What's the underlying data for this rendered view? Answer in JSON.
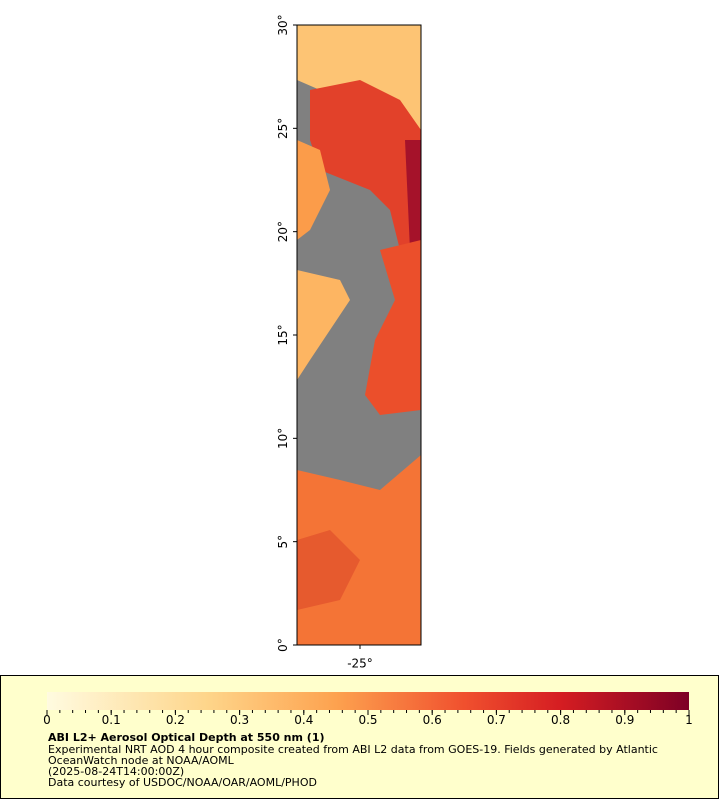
{
  "map": {
    "y_ticks": [
      {
        "value": 0,
        "label": "0°"
      },
      {
        "value": 5,
        "label": "5°"
      },
      {
        "value": 10,
        "label": "10°"
      },
      {
        "value": 15,
        "label": "15°"
      },
      {
        "value": 20,
        "label": "20°"
      },
      {
        "value": 25,
        "label": "25°"
      },
      {
        "value": 30,
        "label": "30°"
      }
    ],
    "x_tick": "-25°"
  },
  "legend": {
    "colorbar_ticks": [
      0,
      0.1,
      0.2,
      0.3,
      0.4,
      0.5,
      0.6,
      0.7,
      0.8,
      0.9,
      1
    ],
    "title": "ABI L2+ Aerosol Optical Depth at 550 nm (1)",
    "lines": [
      "Experimental NRT AOD 4 hour composite created from ABI L2 data from GOES-19. Fields generated by Atlantic",
      "OceanWatch node at NOAA/AOML",
      "(2025-08-24T14:00:00Z)",
      "Data courtesy of USDOC/NOAA/OAR/AOML/PHOD"
    ]
  }
}
